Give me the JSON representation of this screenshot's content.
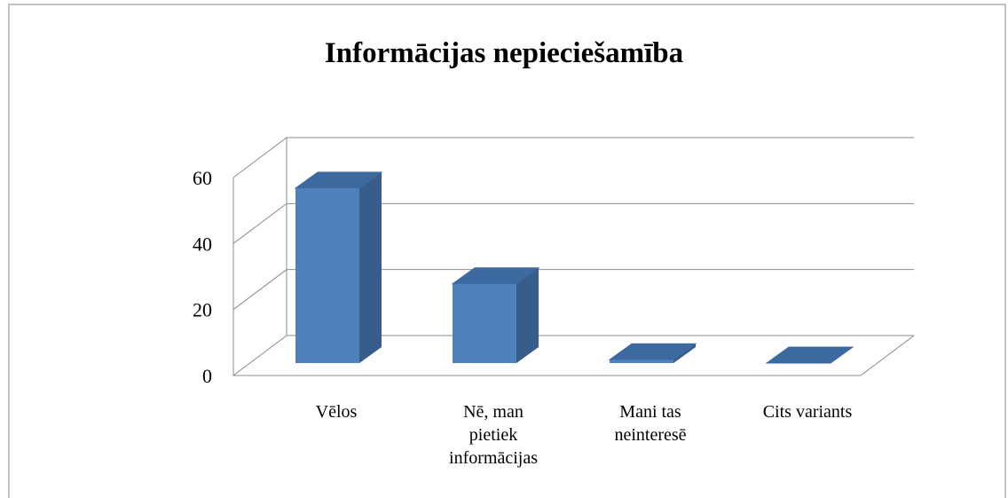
{
  "chart_data": {
    "type": "bar3d",
    "title": "Informācijas nepieciešamība",
    "categories": [
      "Vēlos",
      "Nē, man pietiek informācijas",
      "Mani tas neinteresē",
      "Cits variants"
    ],
    "values": [
      53,
      24,
      1,
      0
    ],
    "color": "#4f81bd",
    "ylim": [
      0,
      60
    ],
    "yticks": [
      0,
      20,
      40,
      60
    ],
    "grid": true
  }
}
